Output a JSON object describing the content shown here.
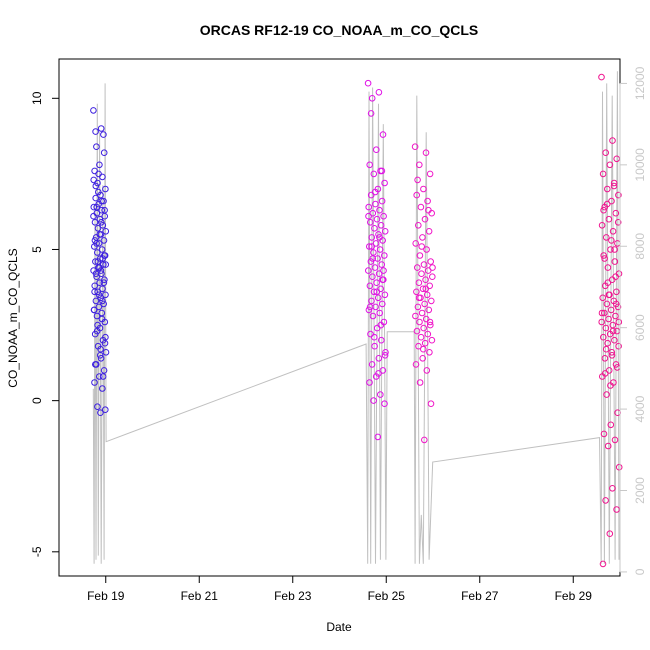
{
  "chart_data": {
    "type": "scatter",
    "title": "ORCAS RF12-19 CO_NOAA_m_CO_QCLS",
    "xlabel": "Date",
    "ylabel": "CO_NOAA_m_CO_QCLS",
    "x_ticks": [
      "Feb 19",
      "Feb 21",
      "Feb 23",
      "Feb 25",
      "Feb 27",
      "Feb 29"
    ],
    "xlim": [
      "2016-02-18T00:00",
      "2016-03-01T00:00"
    ],
    "ylim": [
      -5.8,
      11.3
    ],
    "y_ticks": [
      -5,
      0,
      5,
      10
    ],
    "right_axis": {
      "ylim": [
        -100,
        12600
      ],
      "ticks": [
        0,
        2000,
        4000,
        6000,
        8000,
        10000,
        12000
      ],
      "color": "#c8c8c8"
    },
    "flights": [
      {
        "start": "2016-02-18T17:40",
        "end": "2016-02-19T00:10",
        "color": "#3d1fe0",
        "sample_days": [
          "2016-02-18T17:55",
          "2016-02-18T18:40",
          "2016-02-18T19:20",
          "2016-02-18T20:10",
          "2016-02-18T21:00",
          "2016-02-18T21:50",
          "2016-02-18T22:40",
          "2016-02-18T23:20",
          "2016-02-18T23:55"
        ],
        "values": [
          9.6,
          9.0,
          8.4,
          8.2,
          7.8,
          7.6,
          7.4,
          7.2,
          7.0,
          6.8,
          6.7,
          6.6,
          6.5,
          6.4,
          6.3,
          6.2,
          6.1,
          6.0,
          5.9,
          5.8,
          5.7,
          5.6,
          5.5,
          5.4,
          5.3,
          5.2,
          5.1,
          5.0,
          4.9,
          4.8,
          4.7,
          4.6,
          4.5,
          4.4,
          4.3,
          4.2,
          4.1,
          4.0,
          3.9,
          3.8,
          3.7,
          3.6,
          3.5,
          3.4,
          3.3,
          3.2,
          3.1,
          3.0,
          2.9,
          2.8,
          2.6,
          2.4,
          2.2,
          2.0,
          1.8,
          1.6,
          1.4,
          1.2,
          1.0,
          0.8,
          0.6,
          0.4,
          -0.2,
          -0.3,
          -0.4,
          8.9,
          8.8,
          7.5,
          7.3,
          6.6,
          6.4,
          6.3,
          5.5,
          5.3,
          4.7,
          4.6,
          4.5,
          4.3,
          4.2,
          3.9,
          3.5,
          3.0,
          2.7,
          2.3,
          1.9,
          1.5,
          1.2,
          0.8,
          6.9,
          6.1,
          5.9,
          5.2,
          4.8,
          4.4,
          3.6,
          3.3,
          2.5,
          2.1,
          1.7,
          7.1
        ]
      },
      {
        "start": "2016-02-24T14:40",
        "end": "2016-02-24T23:40",
        "color": "#e011e6",
        "values": [
          10.5,
          10.2,
          10.0,
          8.8,
          8.3,
          7.8,
          7.6,
          7.5,
          7.2,
          7.0,
          6.8,
          6.6,
          6.5,
          6.4,
          6.3,
          6.2,
          6.1,
          6.0,
          5.9,
          5.8,
          5.7,
          5.6,
          5.5,
          5.4,
          5.3,
          5.2,
          5.1,
          5.0,
          4.9,
          4.8,
          4.7,
          4.6,
          4.5,
          4.4,
          4.3,
          4.2,
          4.1,
          4.0,
          3.9,
          3.8,
          3.7,
          3.6,
          3.5,
          3.4,
          3.3,
          3.2,
          3.1,
          3.0,
          2.9,
          2.8,
          2.6,
          2.4,
          2.2,
          2.0,
          1.8,
          1.6,
          1.4,
          1.2,
          1.0,
          0.8,
          0.6,
          0.2,
          0.0,
          -0.1,
          -1.2,
          9.5,
          7.6,
          6.9,
          6.1,
          5.4,
          4.7,
          4.3,
          3.6,
          3.1,
          2.5,
          2.1,
          1.5,
          0.9,
          5.1,
          4.0
        ]
      },
      {
        "start": "2016-02-25T14:50",
        "end": "2016-02-25T23:50",
        "color": "#f016c8",
        "values": [
          8.4,
          8.2,
          7.8,
          7.5,
          7.0,
          6.8,
          6.6,
          6.4,
          6.2,
          6.0,
          5.8,
          5.6,
          5.4,
          5.2,
          5.0,
          4.8,
          4.6,
          4.5,
          4.4,
          4.3,
          4.2,
          4.1,
          4.0,
          3.9,
          3.8,
          3.7,
          3.6,
          3.5,
          3.4,
          3.3,
          3.2,
          3.1,
          3.0,
          2.9,
          2.8,
          2.7,
          2.6,
          2.5,
          2.4,
          2.3,
          2.2,
          2.1,
          2.0,
          1.9,
          1.8,
          1.6,
          1.4,
          1.2,
          1.0,
          0.6,
          -0.1,
          -1.3,
          7.3,
          6.3,
          5.1,
          4.4,
          3.7,
          3.4,
          2.6,
          1.7
        ]
      },
      {
        "start": "2016-02-29T14:30",
        "end": "2016-02-29T23:40",
        "color": "#f01490",
        "values": [
          10.7,
          8.6,
          8.2,
          8.0,
          7.8,
          7.5,
          7.2,
          7.0,
          6.8,
          6.6,
          6.4,
          6.2,
          6.0,
          5.8,
          5.6,
          5.4,
          5.2,
          5.0,
          4.8,
          4.6,
          4.4,
          4.2,
          4.0,
          3.8,
          3.6,
          3.5,
          3.4,
          3.3,
          3.2,
          3.1,
          3.0,
          2.9,
          2.8,
          2.7,
          2.6,
          2.5,
          2.4,
          2.3,
          2.2,
          2.1,
          2.0,
          1.9,
          1.8,
          1.6,
          1.4,
          1.2,
          1.0,
          0.8,
          0.6,
          0.2,
          -0.4,
          -0.8,
          -1.1,
          -1.3,
          -1.5,
          -2.2,
          -2.9,
          -3.3,
          -3.6,
          -4.4,
          -5.4,
          7.1,
          6.5,
          5.9,
          5.3,
          4.7,
          4.1,
          3.5,
          2.9,
          2.3,
          1.7,
          1.1,
          0.5,
          6.3,
          5.0,
          3.9,
          2.6,
          1.5,
          0.9,
          3.2
        ]
      }
    ],
    "altitude_series": {
      "color": "#c0c0c0",
      "points": [
        [
          "2016-02-18T17:35",
          4500
        ],
        [
          "2016-02-18T18:00",
          200
        ],
        [
          "2016-02-18T18:30",
          9000
        ],
        [
          "2016-02-18T19:00",
          300
        ],
        [
          "2016-02-18T19:40",
          11500
        ],
        [
          "2016-02-18T20:10",
          400
        ],
        [
          "2016-02-18T20:50",
          10800
        ],
        [
          "2016-02-18T21:40",
          200
        ],
        [
          "2016-02-18T22:30",
          9500
        ],
        [
          "2016-02-18T23:10",
          300
        ],
        [
          "2016-02-18T23:40",
          12000
        ],
        [
          "2016-02-19T00:10",
          3200
        ],
        [
          "2016-02-24T13:40",
          5600
        ],
        [
          "2016-02-24T14:30",
          200
        ],
        [
          "2016-02-24T15:10",
          11800
        ],
        [
          "2016-02-24T16:00",
          200
        ],
        [
          "2016-02-24T17:00",
          11900
        ],
        [
          "2016-02-24T18:30",
          200
        ],
        [
          "2016-02-24T20:00",
          11500
        ],
        [
          "2016-02-24T21:00",
          300
        ],
        [
          "2016-02-24T22:30",
          11000
        ],
        [
          "2016-02-24T23:50",
          300
        ],
        [
          "2016-02-25T00:30",
          5900
        ],
        [
          "2016-02-25T14:20",
          5900
        ],
        [
          "2016-02-25T14:50",
          200
        ],
        [
          "2016-02-25T15:40",
          11700
        ],
        [
          "2016-02-25T17:00",
          200
        ],
        [
          "2016-02-25T18:00",
          1400
        ],
        [
          "2016-02-25T19:00",
          200
        ],
        [
          "2016-02-25T20:30",
          10800
        ],
        [
          "2016-02-25T22:00",
          300
        ],
        [
          "2016-02-25T23:50",
          2700
        ],
        [
          "2016-02-29T13:30",
          3300
        ],
        [
          "2016-02-29T14:20",
          200
        ],
        [
          "2016-02-29T15:00",
          11800
        ],
        [
          "2016-02-29T16:00",
          200
        ],
        [
          "2016-02-29T17:10",
          12000
        ],
        [
          "2016-02-29T18:30",
          200
        ],
        [
          "2016-02-29T20:00",
          11700
        ],
        [
          "2016-02-29T21:30",
          300
        ],
        [
          "2016-02-29T22:40",
          12300
        ],
        [
          "2016-02-29T23:30",
          300
        ]
      ]
    }
  }
}
